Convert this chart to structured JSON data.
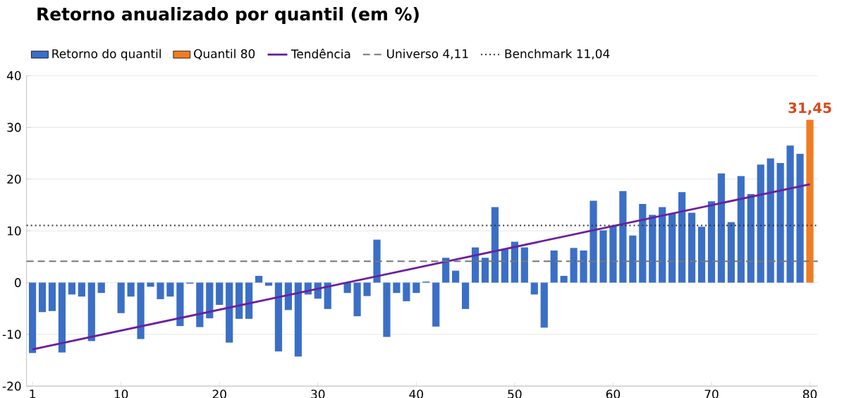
{
  "chart_data": {
    "type": "bar",
    "title": "Retorno anualizado por quantil (em %)",
    "x": [
      1,
      2,
      3,
      4,
      5,
      6,
      7,
      8,
      9,
      10,
      11,
      12,
      13,
      14,
      15,
      16,
      17,
      18,
      19,
      20,
      21,
      22,
      23,
      24,
      25,
      26,
      27,
      28,
      29,
      30,
      31,
      32,
      33,
      34,
      35,
      36,
      37,
      38,
      39,
      40,
      41,
      42,
      43,
      44,
      45,
      46,
      47,
      48,
      49,
      50,
      51,
      52,
      53,
      54,
      55,
      56,
      57,
      58,
      59,
      60,
      61,
      62,
      63,
      64,
      65,
      66,
      67,
      68,
      69,
      70,
      71,
      72,
      73,
      74,
      75,
      76,
      77,
      78,
      79,
      80
    ],
    "series": [
      {
        "name": "Retorno do quantil",
        "color": "#3b6fc6",
        "values": [
          -13.6,
          -5.7,
          -5.5,
          -13.5,
          -2.3,
          -2.7,
          -11.3,
          -2.0,
          0,
          -5.9,
          -2.7,
          -10.9,
          -0.8,
          -3.2,
          -2.7,
          -8.4,
          -0.2,
          -8.6,
          -6.9,
          -4.3,
          -11.6,
          -7.0,
          -7.0,
          1.3,
          -0.6,
          -13.3,
          -5.3,
          -14.3,
          -2.3,
          -3.1,
          -5.1,
          0,
          -2.0,
          -6.5,
          -2.6,
          8.3,
          -10.5,
          -2.0,
          -3.6,
          -2.0,
          0.2,
          -8.5,
          4.8,
          2.3,
          -5.1,
          6.8,
          4.8,
          14.6,
          6.4,
          7.9,
          6.8,
          -2.3,
          -8.7,
          6.2,
          1.3,
          6.7,
          6.2,
          15.8,
          10.1,
          11.0,
          17.7,
          9.1,
          15.2,
          13.1,
          14.6,
          13.4,
          17.5,
          13.5,
          10.8,
          15.7,
          21.1,
          11.7,
          20.6,
          17.1,
          22.8,
          24.0,
          23.1,
          26.5,
          24.9,
          null
        ]
      },
      {
        "name": "Quantil 80",
        "color": "#f07c22",
        "values": [
          null,
          null,
          null,
          null,
          null,
          null,
          null,
          null,
          null,
          null,
          null,
          null,
          null,
          null,
          null,
          null,
          null,
          null,
          null,
          null,
          null,
          null,
          null,
          null,
          null,
          null,
          null,
          null,
          null,
          null,
          null,
          null,
          null,
          null,
          null,
          null,
          null,
          null,
          null,
          null,
          null,
          null,
          null,
          null,
          null,
          null,
          null,
          null,
          null,
          null,
          null,
          null,
          null,
          null,
          null,
          null,
          null,
          null,
          null,
          null,
          null,
          null,
          null,
          null,
          null,
          null,
          null,
          null,
          null,
          null,
          null,
          null,
          null,
          null,
          null,
          null,
          null,
          null,
          null,
          31.45
        ],
        "value_labels": [
          null,
          null,
          null,
          null,
          null,
          null,
          null,
          null,
          null,
          null,
          null,
          null,
          null,
          null,
          null,
          null,
          null,
          null,
          null,
          null,
          null,
          null,
          null,
          null,
          null,
          null,
          null,
          null,
          null,
          null,
          null,
          null,
          null,
          null,
          null,
          null,
          null,
          null,
          null,
          null,
          null,
          null,
          null,
          null,
          null,
          null,
          null,
          null,
          null,
          null,
          null,
          null,
          null,
          null,
          null,
          null,
          null,
          null,
          null,
          null,
          null,
          null,
          null,
          null,
          null,
          null,
          null,
          null,
          null,
          null,
          null,
          null,
          null,
          null,
          null,
          null,
          null,
          null,
          null,
          "31,45"
        ]
      },
      {
        "name": "Tendência",
        "type": "line",
        "color": "#6a1fa0",
        "x": [
          1,
          80
        ],
        "values": [
          -12.9,
          19.0
        ]
      }
    ],
    "ref_lines": [
      {
        "axis": "y",
        "value": 4.11,
        "label": "Universo 4,11",
        "color": "#777777",
        "line_style": "dashed"
      },
      {
        "axis": "y",
        "value": 11.04,
        "label": "Benchmark 11,04",
        "color": "#333333",
        "line_style": "dotted"
      }
    ],
    "xlim": [
      0.4,
      80.8
    ],
    "xticks": [
      1,
      10,
      20,
      30,
      40,
      50,
      60,
      70,
      80
    ],
    "ylim": [
      -20,
      40
    ],
    "yticks": [
      -20,
      -10,
      0,
      10,
      20,
      30,
      40
    ],
    "grid": "y",
    "legend": "top"
  }
}
